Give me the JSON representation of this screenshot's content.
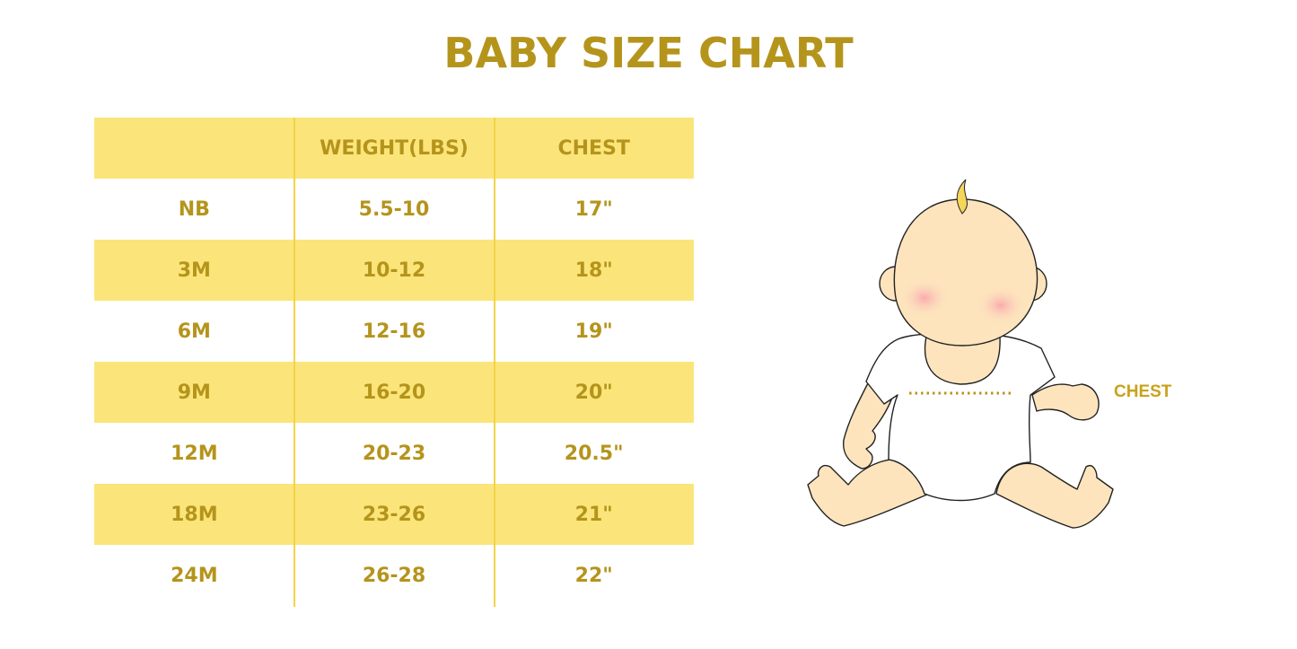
{
  "title": "BABY SIZE CHART",
  "table": {
    "headers": [
      "",
      "WEIGHT(LBS)",
      "CHEST"
    ],
    "rows": [
      [
        "NB",
        "5.5-10",
        "17\""
      ],
      [
        "3M",
        "10-12",
        "18\""
      ],
      [
        "6M",
        "12-16",
        "19\""
      ],
      [
        "9M",
        "16-20",
        "20\""
      ],
      [
        "12M",
        "20-23",
        "20.5\""
      ],
      [
        "18M",
        "23-26",
        "21\""
      ],
      [
        "24M",
        "26-28",
        "22\""
      ]
    ]
  },
  "illustration": {
    "chest_label": "CHEST"
  },
  "colors": {
    "text": "#b5941c",
    "row_fill": "#fbe57a",
    "skin": "#fde4bd"
  }
}
